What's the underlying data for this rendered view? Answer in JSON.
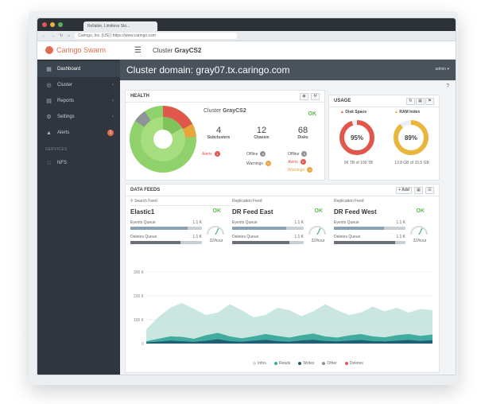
{
  "browser": {
    "tab_title": "Reliable, Limitless Sto...",
    "address": "Caringo, Inc. [US] | https://www.caringo.com"
  },
  "app": {
    "logo_text": "Caringo Swarm",
    "breadcrumb_prefix": "Cluster",
    "breadcrumb_name": "GrayCS2",
    "cluster_domain_label": "Cluster domain:",
    "cluster_domain_value": "gray07.tx.caringo.com",
    "admin_label": "admin ▾",
    "help_label": "?"
  },
  "sidebar": {
    "items": [
      {
        "label": "Dashboard",
        "icon": "dashboard-icon",
        "glyph": "▦",
        "active": true
      },
      {
        "label": "Cluster",
        "icon": "cluster-icon",
        "glyph": "◎",
        "arrow": "‹"
      },
      {
        "label": "Reports",
        "icon": "reports-icon",
        "glyph": "▤",
        "arrow": "‹"
      },
      {
        "label": "Settings",
        "icon": "settings-icon",
        "glyph": "⚙",
        "arrow": "‹"
      },
      {
        "label": "Alerts",
        "icon": "alerts-icon",
        "glyph": "▲",
        "badge": "1"
      }
    ],
    "section_label": "SERVICES",
    "services": [
      {
        "label": "NFS",
        "icon": "nfs-icon",
        "glyph": "∷"
      }
    ]
  },
  "health": {
    "title": "HEALTH",
    "cluster_label": "Cluster",
    "cluster_name": "GrayCS2",
    "status": "OK",
    "subclusters": {
      "value": "4",
      "label": "Subclusters"
    },
    "chassis": {
      "value": "12",
      "label": "Chassis"
    },
    "disks": {
      "value": "68",
      "label": "Disks"
    },
    "alerts_label": "Alerts",
    "alerts_count": "1",
    "chassis_offline_label": "Offline",
    "chassis_offline_count": "0",
    "chassis_warnings_label": "Warnings",
    "chassis_warnings_count": "0",
    "disks_offline_label": "Offline",
    "disks_offline_count": "0",
    "disks_alerts_label": "Alerts",
    "disks_alerts_count": "0",
    "disks_warnings_label": "Warnings",
    "disks_warnings_count": "0"
  },
  "usage": {
    "title": "USAGE",
    "disk_space": {
      "label": "Disk Space",
      "percent": 95,
      "percent_text": "95%",
      "detail": "96 TB of 100 TB",
      "color": "#e2574c"
    },
    "ram_index": {
      "label": "RAM Index",
      "percent": 89,
      "percent_text": "89%",
      "detail": "13.8 GB of 15.5 GB",
      "color": "#e9b63b"
    }
  },
  "feeds": {
    "title": "DATA FEEDS",
    "add_label": "+ Add",
    "search_placeholder": "Search Feed",
    "columns": [
      {
        "tag": "",
        "name": "Elastic1",
        "status": "OK",
        "events_label": "Events Queue",
        "events_value": "1.1 K",
        "events_fill": 0.8,
        "deletes_label": "Deletes Queue",
        "deletes_value": "1.1 K",
        "deletes_fill": 0.7,
        "gauge_label": "32/hour"
      },
      {
        "tag": "Replication Feed",
        "name": "DR Feed East",
        "status": "OK",
        "events_label": "Events Queue",
        "events_value": "1.1 K",
        "events_fill": 0.75,
        "deletes_label": "Deletes Queue",
        "deletes_value": "1.1 K",
        "deletes_fill": 0.8,
        "gauge_label": "32/hour"
      },
      {
        "tag": "Replication Feed",
        "name": "DR Feed West",
        "status": "OK",
        "events_label": "Events Queue",
        "events_value": "1.1 K",
        "events_fill": 0.7,
        "deletes_label": "Deletes Queue",
        "deletes_value": "1.1 K",
        "deletes_fill": 0.85,
        "gauge_label": "32/hour"
      }
    ]
  },
  "chart_data": {
    "type": "area",
    "y_ticks": [
      "300 K",
      "200 K",
      "100 K",
      "0"
    ],
    "ylim": [
      0,
      300000
    ],
    "x": [
      0,
      1,
      2,
      3,
      4,
      5,
      6,
      7,
      8,
      9,
      10,
      11,
      12,
      13,
      14,
      15,
      16,
      17,
      18,
      19,
      20,
      21,
      22,
      23,
      24
    ],
    "series": [
      {
        "name": "Infos",
        "color": "#c3e3dd",
        "values": [
          60000,
          110000,
          150000,
          170000,
          145000,
          120000,
          130000,
          165000,
          140000,
          110000,
          120000,
          150000,
          140000,
          115000,
          135000,
          165000,
          140000,
          120000,
          130000,
          155000,
          135000,
          150000,
          130000,
          145000,
          140000
        ]
      },
      {
        "name": "Reads",
        "color": "#3aa99a",
        "values": [
          10000,
          20000,
          30000,
          28000,
          20000,
          35000,
          45000,
          30000,
          22000,
          30000,
          40000,
          32000,
          25000,
          35000,
          42000,
          30000,
          25000,
          34000,
          40000,
          30000,
          26000,
          35000,
          40000,
          32000,
          38000
        ]
      },
      {
        "name": "Writes",
        "color": "#1e5b73",
        "values": [
          5000,
          8000,
          12000,
          10000,
          7000,
          12000,
          18000,
          10000,
          8000,
          12000,
          16000,
          10000,
          8000,
          13000,
          16000,
          11000,
          9000,
          12000,
          15000,
          10000,
          9000,
          12000,
          15000,
          11000,
          14000
        ]
      },
      {
        "name": "Other",
        "color": "#8e9398",
        "values": [
          0,
          0,
          0,
          0,
          0,
          0,
          0,
          0,
          0,
          0,
          0,
          0,
          0,
          0,
          0,
          0,
          0,
          0,
          0,
          0,
          0,
          0,
          0,
          0,
          0
        ]
      },
      {
        "name": "Deletes",
        "color": "#e2574c",
        "values": [
          0,
          0,
          0,
          0,
          0,
          0,
          0,
          0,
          0,
          0,
          0,
          0,
          0,
          0,
          0,
          0,
          0,
          0,
          0,
          0,
          0,
          0,
          0,
          0,
          0
        ]
      }
    ]
  }
}
